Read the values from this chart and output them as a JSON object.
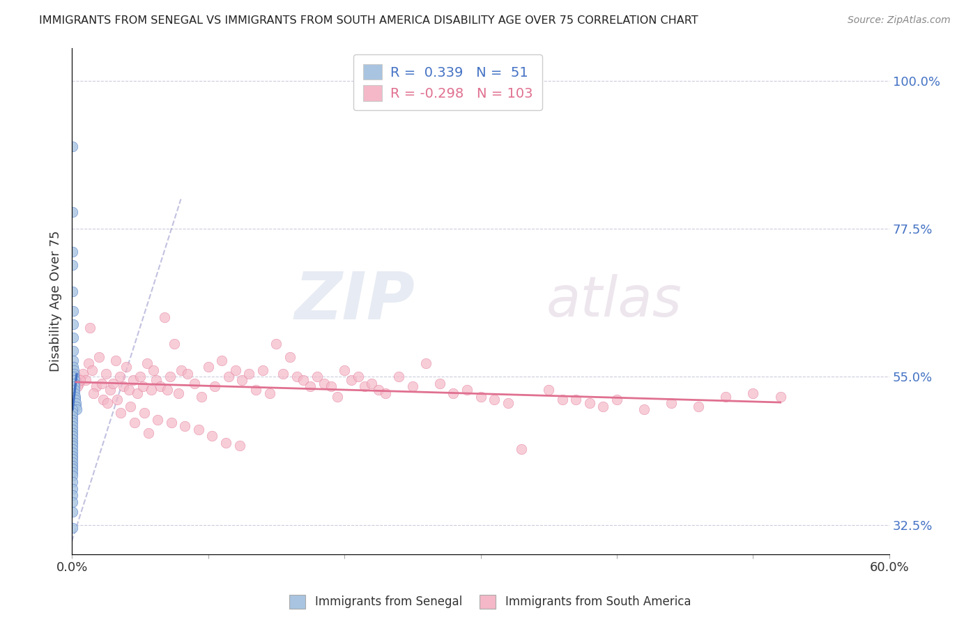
{
  "title": "IMMIGRANTS FROM SENEGAL VS IMMIGRANTS FROM SOUTH AMERICA DISABILITY AGE OVER 75 CORRELATION CHART",
  "source": "Source: ZipAtlas.com",
  "ylabel": "Disability Age Over 75",
  "xlabel_senegal": "Immigrants from Senegal",
  "xlabel_southamerica": "Immigrants from South America",
  "r_senegal": 0.339,
  "n_senegal": 51,
  "r_southamerica": -0.298,
  "n_southamerica": 103,
  "xlim": [
    0.0,
    60.0
  ],
  "ylim": [
    28.0,
    105.0
  ],
  "yticks": [
    32.5,
    55.0,
    77.5,
    100.0
  ],
  "color_senegal": "#a8c4e0",
  "color_southamerica": "#f4b8c8",
  "line_color_senegal": "#4472c4",
  "line_color_southamerica": "#e07090",
  "senegal_x": [
    0.05,
    0.05,
    0.05,
    0.05,
    0.05,
    0.08,
    0.08,
    0.1,
    0.1,
    0.12,
    0.12,
    0.15,
    0.15,
    0.15,
    0.18,
    0.18,
    0.2,
    0.2,
    0.22,
    0.25,
    0.25,
    0.3,
    0.3,
    0.35,
    0.05,
    0.05,
    0.05,
    0.05,
    0.05,
    0.05,
    0.05,
    0.05,
    0.05,
    0.05,
    0.05,
    0.05,
    0.05,
    0.05,
    0.05,
    0.05,
    0.05,
    0.05,
    0.05,
    0.05,
    0.05,
    0.05,
    0.05,
    0.05,
    0.05,
    0.05,
    0.05
  ],
  "senegal_y": [
    90.0,
    80.0,
    74.0,
    72.0,
    68.0,
    65.0,
    63.0,
    61.0,
    59.0,
    57.5,
    56.5,
    56.0,
    55.5,
    55.0,
    54.5,
    54.0,
    53.5,
    53.0,
    52.5,
    52.0,
    51.5,
    51.0,
    50.5,
    50.0,
    50.0,
    49.5,
    49.0,
    48.5,
    48.0,
    47.5,
    47.0,
    46.5,
    46.0,
    45.5,
    45.0,
    44.5,
    44.0,
    43.5,
    43.0,
    42.5,
    42.0,
    41.5,
    41.0,
    40.5,
    40.0,
    39.0,
    38.0,
    37.0,
    36.0,
    34.5,
    32.0
  ],
  "southamerica_x": [
    0.3,
    0.5,
    0.8,
    1.0,
    1.2,
    1.5,
    1.8,
    2.0,
    2.2,
    2.5,
    2.8,
    3.0,
    3.2,
    3.5,
    3.8,
    4.0,
    4.2,
    4.5,
    4.8,
    5.0,
    5.2,
    5.5,
    5.8,
    6.0,
    6.2,
    6.5,
    6.8,
    7.0,
    7.2,
    7.5,
    7.8,
    8.0,
    8.5,
    9.0,
    9.5,
    10.0,
    10.5,
    11.0,
    11.5,
    12.0,
    12.5,
    13.0,
    13.5,
    14.0,
    14.5,
    15.0,
    15.5,
    16.0,
    16.5,
    17.0,
    17.5,
    18.0,
    18.5,
    19.0,
    19.5,
    20.0,
    20.5,
    21.0,
    21.5,
    22.0,
    22.5,
    23.0,
    24.0,
    25.0,
    26.0,
    27.0,
    28.0,
    29.0,
    30.0,
    31.0,
    32.0,
    33.0,
    35.0,
    36.0,
    37.0,
    38.0,
    39.0,
    40.0,
    42.0,
    44.0,
    46.0,
    48.0,
    50.0,
    52.0,
    0.4,
    1.3,
    2.3,
    3.3,
    4.3,
    5.3,
    6.3,
    7.3,
    8.3,
    9.3,
    10.3,
    11.3,
    12.3,
    0.6,
    1.6,
    2.6,
    3.6,
    4.6,
    5.6
  ],
  "southamerica_y": [
    55.0,
    54.0,
    55.5,
    54.5,
    57.0,
    56.0,
    53.5,
    58.0,
    54.0,
    55.5,
    53.0,
    54.0,
    57.5,
    55.0,
    53.5,
    56.5,
    53.0,
    54.5,
    52.5,
    55.0,
    53.5,
    57.0,
    53.0,
    56.0,
    54.5,
    53.5,
    64.0,
    53.0,
    55.0,
    60.0,
    52.5,
    56.0,
    55.5,
    54.0,
    52.0,
    56.5,
    53.5,
    57.5,
    55.0,
    56.0,
    54.5,
    55.5,
    53.0,
    56.0,
    52.5,
    60.0,
    55.5,
    58.0,
    55.0,
    54.5,
    53.5,
    55.0,
    54.0,
    53.5,
    52.0,
    56.0,
    54.5,
    55.0,
    53.5,
    54.0,
    53.0,
    52.5,
    55.0,
    53.5,
    57.0,
    54.0,
    52.5,
    53.0,
    52.0,
    51.5,
    51.0,
    44.0,
    53.0,
    51.5,
    51.5,
    51.0,
    50.5,
    51.5,
    50.0,
    51.0,
    50.5,
    52.0,
    52.5,
    52.0,
    53.5,
    62.5,
    51.5,
    51.5,
    50.5,
    49.5,
    48.5,
    48.0,
    47.5,
    47.0,
    46.0,
    45.0,
    44.5,
    54.5,
    52.5,
    51.0,
    49.5,
    48.0,
    46.5
  ]
}
